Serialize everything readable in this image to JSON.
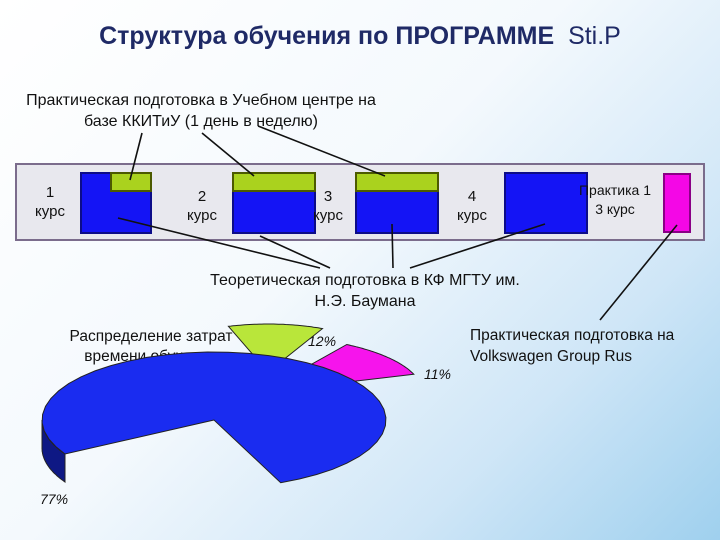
{
  "title": {
    "main": "Структура обучения по ПРОГРАММЕ",
    "accent": "Sti.P"
  },
  "labels": {
    "practical_training": "Практическая подготовка в Учебном центре на базе ККИТиУ (1 день в неделю)",
    "theoretical_training": "Теоретическая подготовка в КФ МГТУ им. Н.Э. Баумана",
    "vw_training": "Практическая подготовка на Volkswagen Group Rus",
    "time_allocation": "Распределение затрат времени обучения"
  },
  "years": [
    {
      "number": "1",
      "word": "курс"
    },
    {
      "number": "2",
      "word": "курс"
    },
    {
      "number": "3",
      "word": "курс"
    },
    {
      "number": "4",
      "word": "курс"
    }
  ],
  "practice_year3": {
    "line1": "Практика 1",
    "line2": "3 курс"
  },
  "pie": {
    "slices": [
      {
        "label": "77%",
        "value": 77,
        "color": "#1a2cf0"
      },
      {
        "label": "12%",
        "value": 12,
        "color": "#b9e63a"
      },
      {
        "label": "11%",
        "value": 11,
        "color": "#f614ec"
      }
    ]
  },
  "colors": {
    "theory": "#1414f5",
    "practice": "#aad21e",
    "vw_practice": "#f407e6",
    "title": "#1f2a66"
  }
}
